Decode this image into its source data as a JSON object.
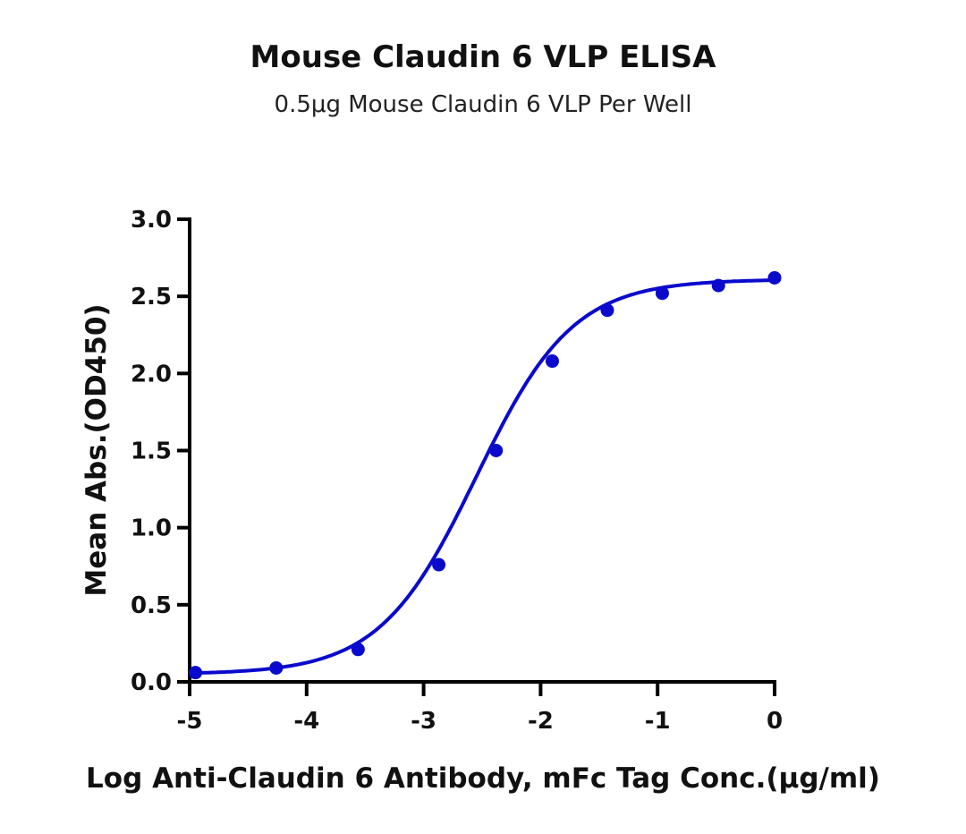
{
  "title": "Mouse Claudin 6 VLP ELISA",
  "subtitle": "0.5μg Mouse Claudin 6 VLP Per Well",
  "chart_data": {
    "type": "line",
    "title": "Mouse Claudin 6 VLP ELISA",
    "subtitle": "0.5μg Mouse Claudin 6 VLP Per Well",
    "xlabel": "Log  Anti-Claudin 6 Antibody, mFc Tag Conc.(μg/ml)",
    "ylabel": "Mean Abs.(OD450)",
    "xlim": [
      -5,
      0
    ],
    "ylim": [
      0,
      3.0
    ],
    "xticks": [
      "-5",
      "-4",
      "-3",
      "-2",
      "-1",
      "0"
    ],
    "yticks": [
      "0.0",
      "0.5",
      "1.0",
      "1.5",
      "2.0",
      "2.5",
      "3.0"
    ],
    "grid": false,
    "legend": null,
    "series": [
      {
        "name": "Anti-Claudin 6 Antibody, mFc Tag",
        "color": "#0a0acc",
        "marker": "circle",
        "fit": "sigmoidal 4PL",
        "x": [
          -4.95,
          -4.26,
          -3.56,
          -2.87,
          -2.38,
          -1.9,
          -1.43,
          -0.96,
          -0.48,
          0.0
        ],
        "y": [
          0.06,
          0.09,
          0.21,
          0.76,
          1.5,
          2.08,
          2.41,
          2.52,
          2.57,
          2.62
        ]
      }
    ]
  }
}
